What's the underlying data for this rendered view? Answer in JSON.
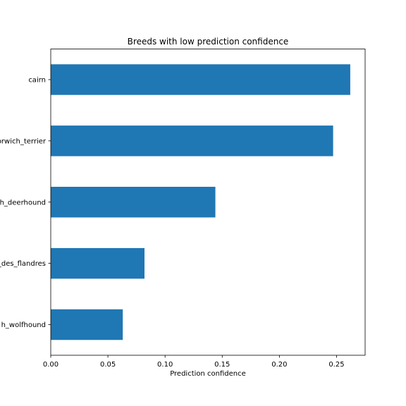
{
  "chart_data": {
    "type": "bar",
    "orientation": "horizontal",
    "title": "Breeds with low prediction confidence",
    "xlabel": "Prediction confidence",
    "ylabel": "",
    "categories": [
      "cairn",
      "orwich_terrier",
      "h_deerhound",
      "_des_flandres",
      "h_wolfhound"
    ],
    "values": [
      0.262,
      0.247,
      0.144,
      0.082,
      0.063
    ],
    "xlim": [
      0,
      0.275
    ],
    "xticks": [
      0,
      0.05,
      0.1,
      0.15,
      0.2,
      0.25
    ],
    "xtick_labels": [
      "0.00",
      "0.05",
      "0.10",
      "0.15",
      "0.20",
      "0.25"
    ],
    "bar_color": "#1f77b4",
    "grid": false,
    "legend": "none"
  }
}
